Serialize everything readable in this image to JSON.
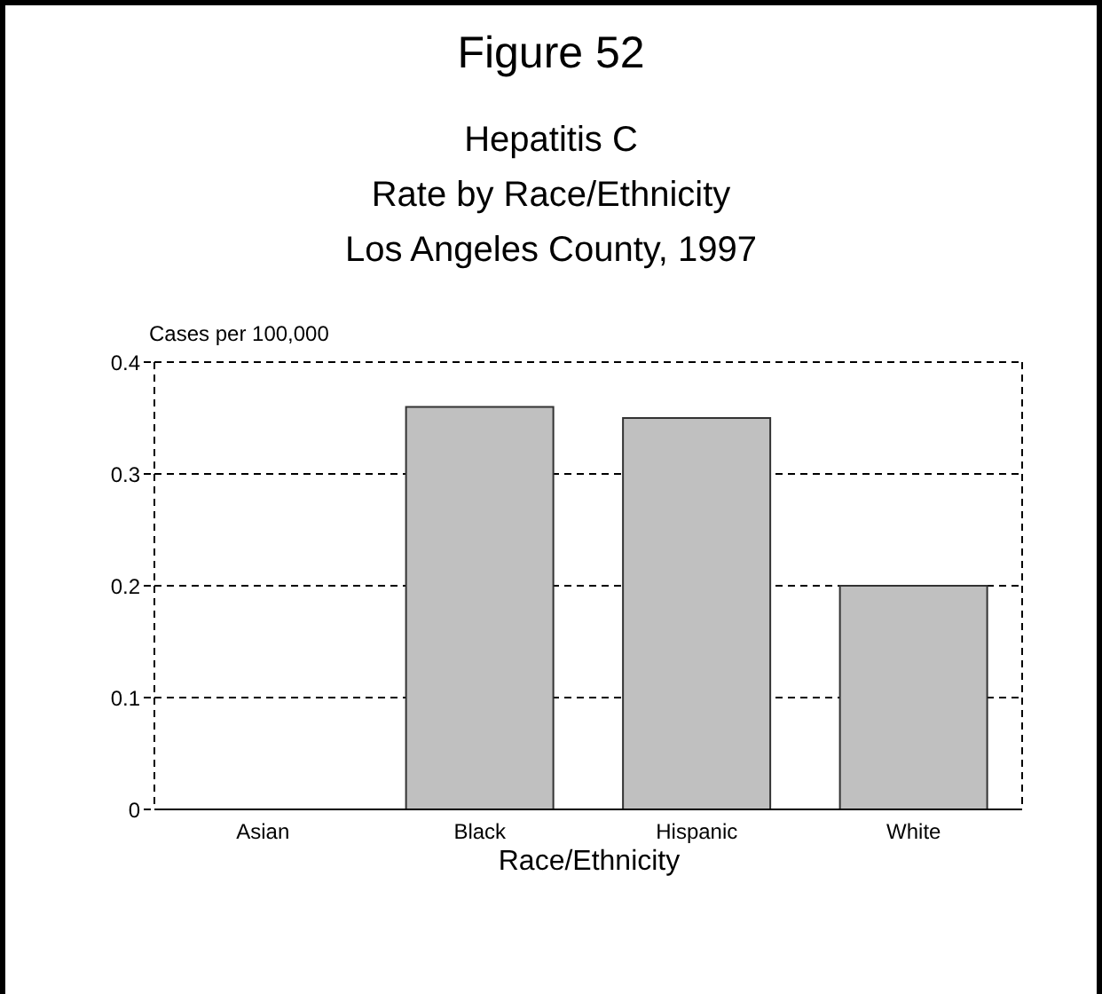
{
  "chart_data": {
    "type": "bar",
    "title": "Figure 52",
    "subtitle": "Hepatitis C\nRate by Race/Ethnicity\nLos Angeles County, 1997",
    "ylabel": "Cases per 100,000",
    "xlabel": "Race/Ethnicity",
    "categories": [
      "Asian",
      "Black",
      "Hispanic",
      "White"
    ],
    "values": [
      0,
      0.36,
      0.35,
      0.2
    ],
    "color": "#c0c0c0",
    "ylim": [
      0,
      0.4
    ],
    "yticks": [
      0,
      0.1,
      0.2,
      0.3,
      0.4
    ],
    "grid": "y",
    "legend": false
  }
}
